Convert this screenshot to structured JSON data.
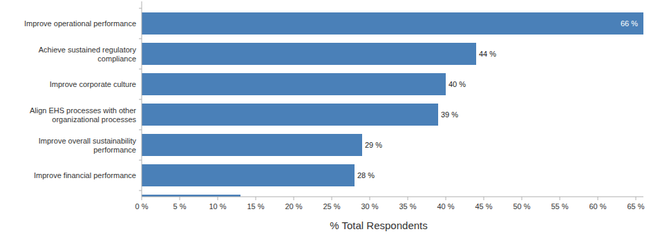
{
  "chart_data": {
    "type": "bar",
    "orientation": "horizontal",
    "categories": [
      "Improve operational performance",
      "Achieve sustained regulatory compliance",
      "Improve corporate culture",
      "Align EHS processes with other organizational processes",
      "Improve overall sustainability performance",
      "Improve financial performance",
      null
    ],
    "values": [
      66,
      44,
      40,
      39,
      29,
      28,
      13
    ],
    "value_labels": [
      "66 %",
      "44 %",
      "40 %",
      "39 %",
      "29 %",
      "28 %",
      null
    ],
    "color": "#4a80b8",
    "x_label": "% Total Respondents",
    "xlim": [
      0,
      66
    ],
    "xticks": [
      {
        "value": 0,
        "label": "0 %"
      },
      {
        "value": 5,
        "label": "5 %"
      },
      {
        "value": 10,
        "label": "10 %"
      },
      {
        "value": 15,
        "label": "15 %"
      },
      {
        "value": 20,
        "label": "20 %"
      },
      {
        "value": 25,
        "label": "25 %"
      },
      {
        "value": 30,
        "label": "30 %"
      },
      {
        "value": 35,
        "label": "35 %"
      },
      {
        "value": 40,
        "label": "40 %"
      },
      {
        "value": 45,
        "label": "45 %"
      },
      {
        "value": 50,
        "label": "50 %"
      },
      {
        "value": 55,
        "label": "55 %"
      },
      {
        "value": 60,
        "label": "60 %"
      },
      {
        "value": 65,
        "label": "65 %"
      }
    ],
    "grid": false,
    "data_labels": true
  }
}
